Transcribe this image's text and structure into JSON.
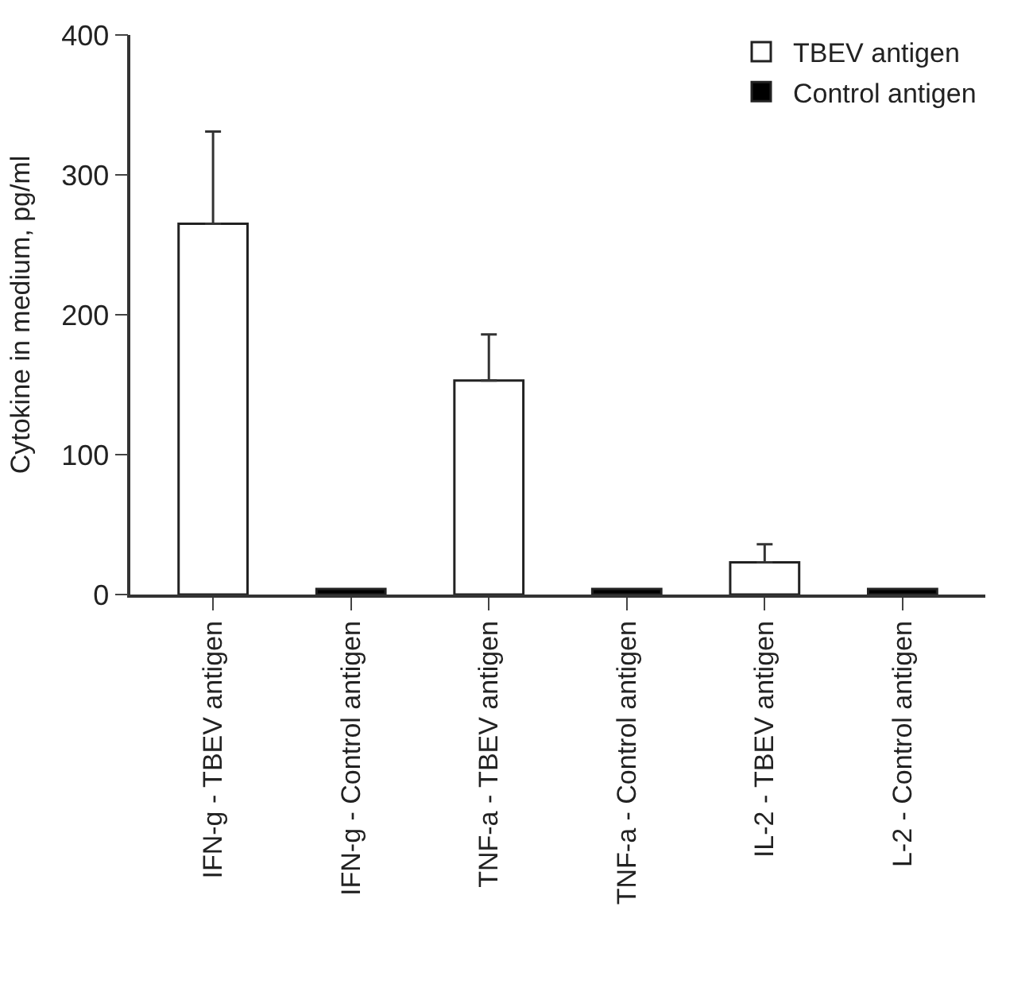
{
  "chart_data": {
    "type": "bar",
    "ylabel": "Cytokine in medium, pg/ml",
    "categories": [
      "IFN-g - TBEV antigen",
      "IFN-g - Control antigen",
      "TNF-a - TBEV antigen",
      "TNF-a - Control antigen",
      "IL-2 - TBEV antigen",
      "L-2 - Control antigen"
    ],
    "series": [
      {
        "name": "TBEV antigen",
        "color": "#ffffff",
        "values": [
          265,
          null,
          153,
          null,
          23,
          null
        ],
        "errors": [
          [
            265,
            331
          ],
          null,
          [
            153,
            186
          ],
          null,
          [
            23,
            36
          ],
          null
        ]
      },
      {
        "name": "Control antigen",
        "color": "#000000",
        "values": [
          null,
          4,
          null,
          4,
          null,
          4
        ]
      }
    ],
    "ylim": [
      0,
      400
    ],
    "yticks": [
      0,
      100,
      200,
      300,
      400
    ],
    "legend": "top right"
  }
}
